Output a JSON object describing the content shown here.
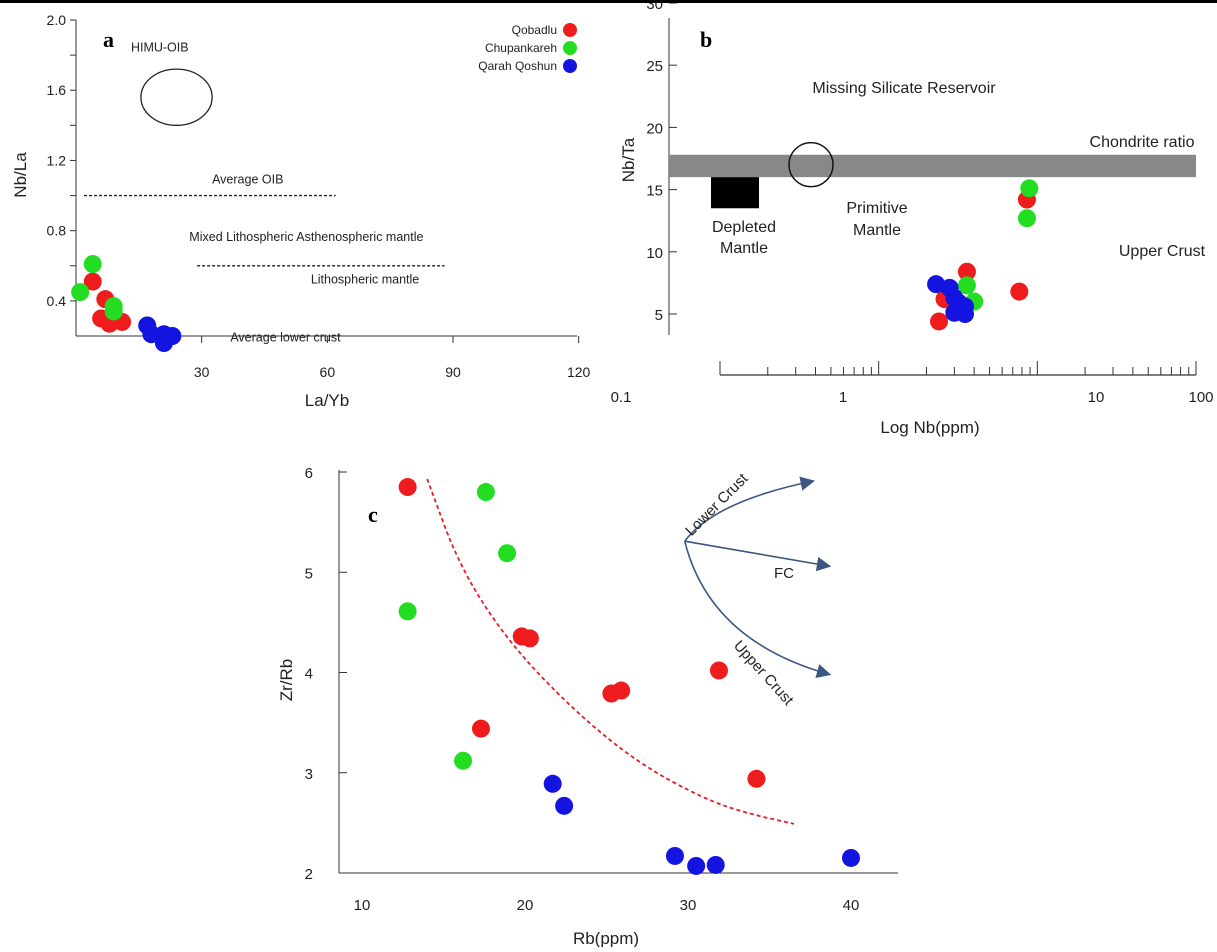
{
  "chart_data": [
    {
      "panel": "a",
      "type": "scatter",
      "xlabel": "La/Yb",
      "ylabel": "Nb/La",
      "xlim": [
        0,
        120
      ],
      "ylim": [
        0.15,
        2.0
      ],
      "xticks": [
        30,
        60,
        90,
        120
      ],
      "yticks": [
        0.4,
        0.8,
        1.2,
        1.6,
        2.0
      ],
      "ytick_labels": [
        "0.4",
        "0.8",
        "1.2",
        "1.6",
        "2.0"
      ],
      "legend_position": "top-right",
      "series": [
        {
          "name": "Qobadlu",
          "color": "#ee1c1c",
          "points": [
            [
              4,
              0.51
            ],
            [
              7,
              0.41
            ],
            [
              6,
              0.3
            ],
            [
              8,
              0.27
            ],
            [
              11,
              0.28
            ],
            [
              9,
              0.31
            ]
          ]
        },
        {
          "name": "Chupankareh",
          "color": "#22dd22",
          "points": [
            [
              4,
              0.61
            ],
            [
              1,
              0.45
            ],
            [
              9,
              0.37
            ],
            [
              9,
              0.34
            ]
          ]
        },
        {
          "name": "Qarah Qoshun",
          "color": "#1414e0",
          "points": [
            [
              17,
              0.26
            ],
            [
              18,
              0.21
            ],
            [
              21,
              0.21
            ],
            [
              21,
              0.16
            ],
            [
              23,
              0.2
            ]
          ]
        }
      ],
      "annotations": [
        {
          "text": "HIMU-OIB",
          "x": 20,
          "y": 1.82
        },
        {
          "text": "Average OIB",
          "x": 41,
          "y": 1.07
        },
        {
          "text": "Mixed Lithospheric Asthenospheric mantle",
          "x": 55,
          "y": 0.74
        },
        {
          "text": "Lithospheric  mantle",
          "x": 69,
          "y": 0.5
        },
        {
          "text": "Average lower crust",
          "x": 50,
          "y": 0.17
        }
      ],
      "ellipse": {
        "cx": 24,
        "cy": 1.56,
        "rx": 8.5,
        "ry": 0.16
      },
      "lines": [
        {
          "style": "dashed",
          "y": 1.0,
          "x": [
            0,
            62
          ]
        },
        {
          "style": "dashed",
          "y": 0.6,
          "x": [
            27,
            88
          ]
        }
      ]
    },
    {
      "panel": "b",
      "type": "scatter",
      "xlabel": "Log Nb(ppm)",
      "ylabel": "Nb/Ta",
      "xscale": "log",
      "xlim": [
        0.1,
        100
      ],
      "ylim": [
        0,
        30
      ],
      "xticks": [
        0.1,
        1,
        10,
        100
      ],
      "xtick_labels": [
        "0.1",
        "1",
        "10",
        "100"
      ],
      "yticks": [
        5,
        10,
        15,
        20,
        25,
        30
      ],
      "ytick_labels": [
        "5",
        "10",
        "15",
        "20",
        "25",
        "30"
      ],
      "series": [
        {
          "name": "Qobadlu",
          "color": "#ee1c1c",
          "points": [
            [
              3.6,
              8.4
            ],
            [
              7.7,
              6.8
            ],
            [
              8.6,
              14.2
            ],
            [
              2.6,
              6.2
            ],
            [
              2.4,
              4.4
            ],
            [
              3.0,
              5.2
            ],
            [
              3.3,
              5.6
            ]
          ]
        },
        {
          "name": "Chupankareh",
          "color": "#22dd22",
          "points": [
            [
              3.6,
              7.3
            ],
            [
              4.0,
              6.0
            ],
            [
              8.6,
              12.7
            ],
            [
              8.9,
              15.1
            ]
          ]
        },
        {
          "name": "Qarah Qoshun",
          "color": "#1414e0",
          "points": [
            [
              2.3,
              7.4
            ],
            [
              2.8,
              7.1
            ],
            [
              3.0,
              6.3
            ],
            [
              3.2,
              5.9
            ],
            [
              3.5,
              5.6
            ],
            [
              3.0,
              5.1
            ],
            [
              3.5,
              5.0
            ]
          ]
        }
      ],
      "annotations": [
        {
          "text": "Missing Silicate Reservoir",
          "x": 3.6,
          "y": 23.4
        },
        {
          "text": "Chondrite ratio",
          "x": 40,
          "y": 19.0
        },
        {
          "text": "Depleted",
          "x": 0.25,
          "y": 11.8
        },
        {
          "text": "Mantle",
          "x": 0.25,
          "y": 9.6
        },
        {
          "text": "Primitive",
          "x": 3.1,
          "y": 13.5
        },
        {
          "text": "Mantle",
          "x": 3.1,
          "y": 11.3
        },
        {
          "text": "Upper Crust",
          "x": 55,
          "y": 9.6
        }
      ],
      "band": {
        "y": [
          16.0,
          17.8
        ],
        "x": [
          0.1,
          100
        ],
        "color": "#888888"
      },
      "depleted_box": {
        "x": [
          0.17,
          0.32
        ],
        "y": [
          13.5,
          16.0
        ]
      },
      "circle": {
        "cx": 0.7,
        "cy": 17.0,
        "r": 1.9
      }
    },
    {
      "panel": "c",
      "type": "scatter",
      "xlabel": "Rb(ppm)",
      "ylabel": "Zr/Rb",
      "xlim": [
        5,
        43
      ],
      "ylim": [
        2,
        6
      ],
      "xticks": [
        10,
        20,
        30,
        40
      ],
      "yticks": [
        2,
        3,
        4,
        5,
        6
      ],
      "series": [
        {
          "name": "Qobadlu",
          "color": "#ee1c1c",
          "points": [
            [
              12.8,
              5.85
            ],
            [
              19.8,
              4.36
            ],
            [
              20.3,
              4.34
            ],
            [
              25.3,
              3.79
            ],
            [
              25.9,
              3.82
            ],
            [
              31.9,
              4.02
            ],
            [
              34.2,
              2.94
            ],
            [
              17.3,
              3.44
            ]
          ]
        },
        {
          "name": "Chupankareh",
          "color": "#22dd22",
          "points": [
            [
              17.6,
              5.8
            ],
            [
              18.9,
              5.19
            ],
            [
              12.8,
              4.61
            ],
            [
              16.2,
              3.12
            ]
          ]
        },
        {
          "name": "Qarah Qoshun",
          "color": "#1414e0",
          "points": [
            [
              21.7,
              2.89
            ],
            [
              22.4,
              2.67
            ],
            [
              29.2,
              2.17
            ],
            [
              30.5,
              2.07
            ],
            [
              31.7,
              2.08
            ],
            [
              40.0,
              2.15
            ]
          ]
        }
      ],
      "trend_curve": [
        [
          14,
          5.93
        ],
        [
          16,
          5.05
        ],
        [
          19,
          4.3
        ],
        [
          23,
          3.62
        ],
        [
          27,
          3.09
        ],
        [
          31,
          2.74
        ],
        [
          33.5,
          2.6
        ],
        [
          36.5,
          2.49
        ]
      ],
      "vectors": [
        {
          "text": "Lower Crust",
          "to": [
            37.7,
            5.91
          ]
        },
        {
          "text": "FC",
          "to": [
            38.7,
            5.06
          ]
        },
        {
          "text": "Upper Crust",
          "to": [
            38.7,
            3.98
          ]
        }
      ],
      "vector_origin": [
        29.8,
        5.31
      ]
    }
  ]
}
